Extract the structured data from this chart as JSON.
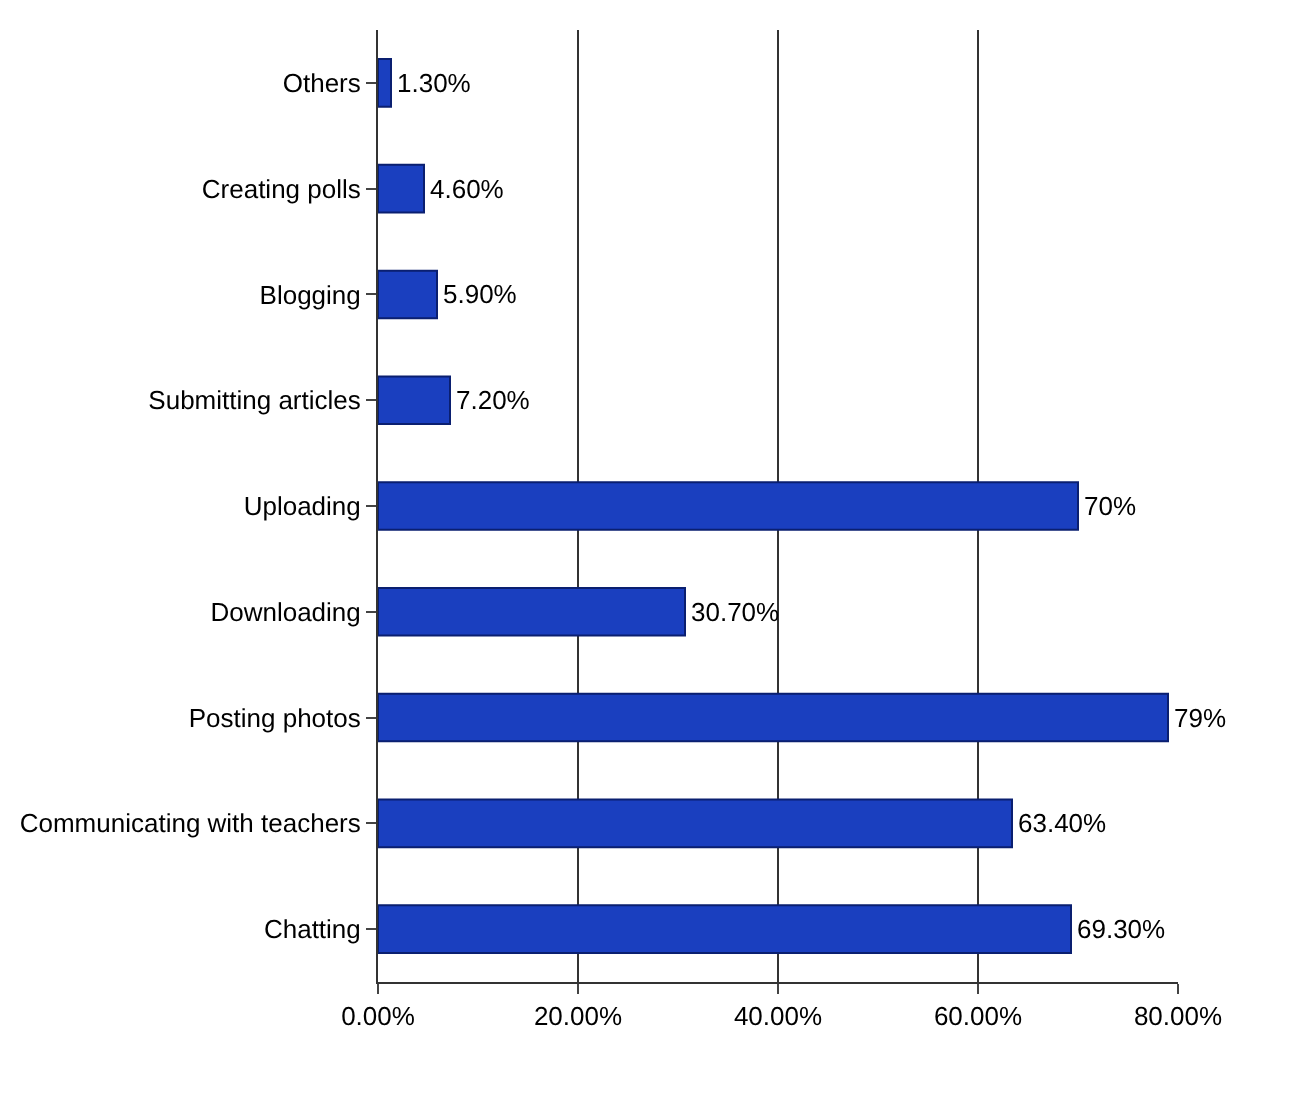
{
  "chart_data": {
    "type": "bar",
    "orientation": "horizontal",
    "categories": [
      "Others",
      "Creating polls",
      "Blogging",
      "Submitting articles",
      "Uploading",
      "Downloading",
      "Posting photos",
      "Communicating with teachers",
      "Chatting"
    ],
    "values": [
      1.3,
      4.6,
      5.9,
      7.2,
      70,
      30.7,
      79,
      63.4,
      69.3
    ],
    "value_labels": [
      "1.30%",
      "4.60%",
      "5.90%",
      "7.20%",
      "70%",
      "30.70%",
      "79%",
      "63.40%",
      "69.30%"
    ],
    "color": "#1a3fbf",
    "xlim": [
      0,
      80
    ],
    "xticks": [
      {
        "value": 0,
        "label": "0.00%"
      },
      {
        "value": 20,
        "label": "20.00%"
      },
      {
        "value": 40,
        "label": "40.00%"
      },
      {
        "value": 60,
        "label": "60.00%"
      },
      {
        "value": 80,
        "label": "80.00%"
      }
    ],
    "grid": "x"
  }
}
